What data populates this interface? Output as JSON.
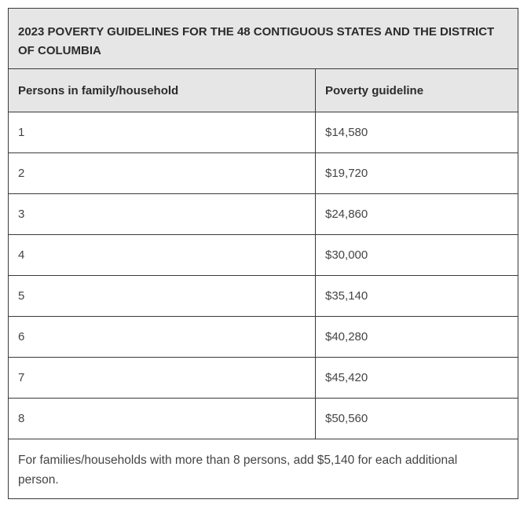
{
  "table": {
    "caption": "2023 POVERTY GUIDELINES FOR THE 48 CONTIGUOUS STATES AND THE DISTRICT OF COLUMBIA",
    "headers": [
      "Persons in family/household",
      "Poverty guideline"
    ],
    "rows": [
      {
        "persons": "1",
        "guideline": "$14,580"
      },
      {
        "persons": "2",
        "guideline": "$19,720"
      },
      {
        "persons": "3",
        "guideline": "$24,860"
      },
      {
        "persons": "4",
        "guideline": "$30,000"
      },
      {
        "persons": "5",
        "guideline": "$35,140"
      },
      {
        "persons": "6",
        "guideline": "$40,280"
      },
      {
        "persons": "7",
        "guideline": "$45,420"
      },
      {
        "persons": "8",
        "guideline": "$50,560"
      }
    ],
    "footnote": "For families/households with more than 8 persons, add $5,140 for each additional person."
  }
}
